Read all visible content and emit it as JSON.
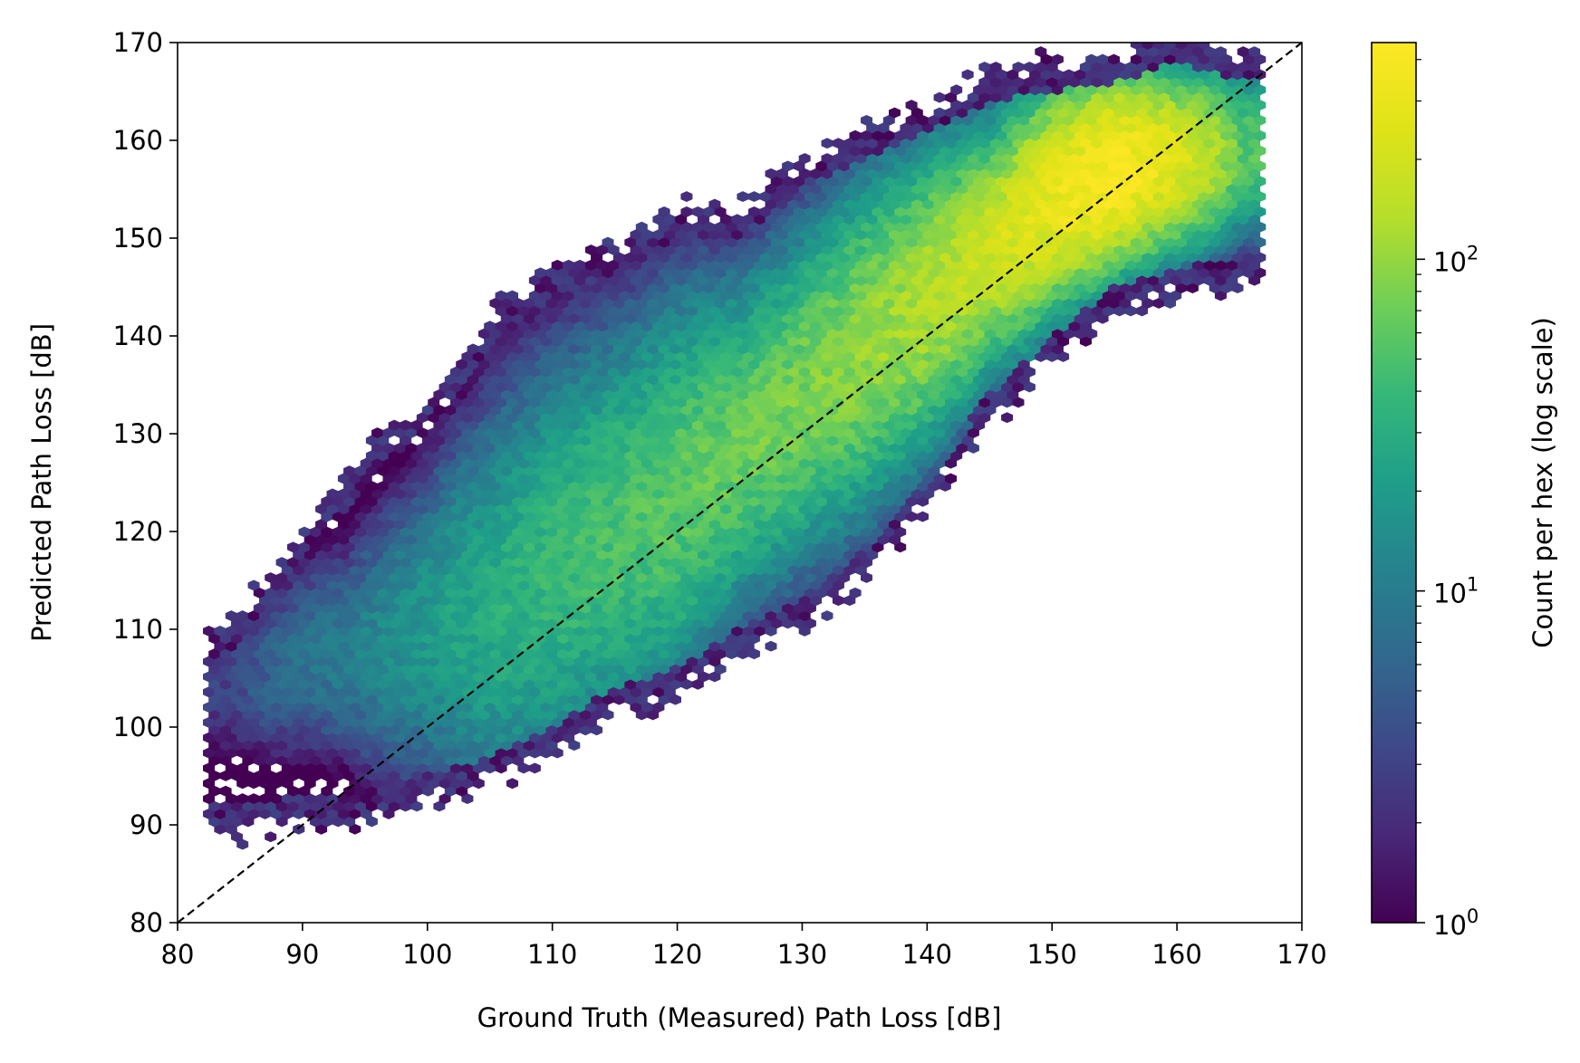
{
  "chart_data": {
    "type": "hexbin",
    "xlabel": "Ground Truth (Measured) Path Loss [dB]",
    "ylabel": "Predicted Path Loss [dB]",
    "colorbar_label": "Count per hex (log scale)",
    "colorbar_scale": "log",
    "colorbar_range": [
      1,
      450
    ],
    "colorbar_ticks": [
      {
        "value": 1,
        "base": "10",
        "exp": "0"
      },
      {
        "value": 10,
        "base": "10",
        "exp": "1"
      },
      {
        "value": 100,
        "base": "10",
        "exp": "2"
      }
    ],
    "colormap": "viridis",
    "xlim": [
      80,
      170
    ],
    "ylim": [
      80,
      170
    ],
    "xticks": [
      80,
      90,
      100,
      110,
      120,
      130,
      140,
      150,
      160,
      170
    ],
    "yticks": [
      80,
      90,
      100,
      110,
      120,
      130,
      140,
      150,
      160,
      170
    ],
    "reference_line": {
      "style": "dashed",
      "color": "#000000",
      "from": [
        80,
        80
      ],
      "to": [
        170,
        170
      ]
    },
    "density_ridge": [
      {
        "x": 84,
        "y": 104,
        "count": 3
      },
      {
        "x": 90,
        "y": 107,
        "count": 8
      },
      {
        "x": 95,
        "y": 108,
        "count": 12
      },
      {
        "x": 100,
        "y": 110,
        "count": 20
      },
      {
        "x": 105,
        "y": 112,
        "count": 30
      },
      {
        "x": 110,
        "y": 116,
        "count": 40
      },
      {
        "x": 115,
        "y": 120,
        "count": 50
      },
      {
        "x": 120,
        "y": 124,
        "count": 60
      },
      {
        "x": 125,
        "y": 129,
        "count": 70
      },
      {
        "x": 130,
        "y": 134,
        "count": 80
      },
      {
        "x": 135,
        "y": 139,
        "count": 100
      },
      {
        "x": 140,
        "y": 144,
        "count": 130
      },
      {
        "x": 145,
        "y": 149,
        "count": 180
      },
      {
        "x": 150,
        "y": 154,
        "count": 300
      },
      {
        "x": 155,
        "y": 157,
        "count": 450
      },
      {
        "x": 160,
        "y": 158,
        "count": 250
      },
      {
        "x": 165,
        "y": 159,
        "count": 60
      }
    ],
    "spread": [
      {
        "x": 84,
        "lo": 92,
        "hi": 107
      },
      {
        "x": 90,
        "lo": 93,
        "hi": 117
      },
      {
        "x": 95,
        "lo": 93,
        "hi": 125
      },
      {
        "x": 100,
        "lo": 95,
        "hi": 131
      },
      {
        "x": 105,
        "lo": 97,
        "hi": 139
      },
      {
        "x": 110,
        "lo": 100,
        "hi": 144
      },
      {
        "x": 115,
        "lo": 104,
        "hi": 146
      },
      {
        "x": 120,
        "lo": 106,
        "hi": 150
      },
      {
        "x": 125,
        "lo": 110,
        "hi": 150
      },
      {
        "x": 130,
        "lo": 113,
        "hi": 155
      },
      {
        "x": 135,
        "lo": 118,
        "hi": 158
      },
      {
        "x": 140,
        "lo": 125,
        "hi": 161
      },
      {
        "x": 145,
        "lo": 134,
        "hi": 164
      },
      {
        "x": 150,
        "lo": 140,
        "hi": 165
      },
      {
        "x": 155,
        "lo": 145,
        "hi": 166
      },
      {
        "x": 160,
        "lo": 147,
        "hi": 168
      },
      {
        "x": 166,
        "lo": 148,
        "hi": 166
      }
    ]
  }
}
